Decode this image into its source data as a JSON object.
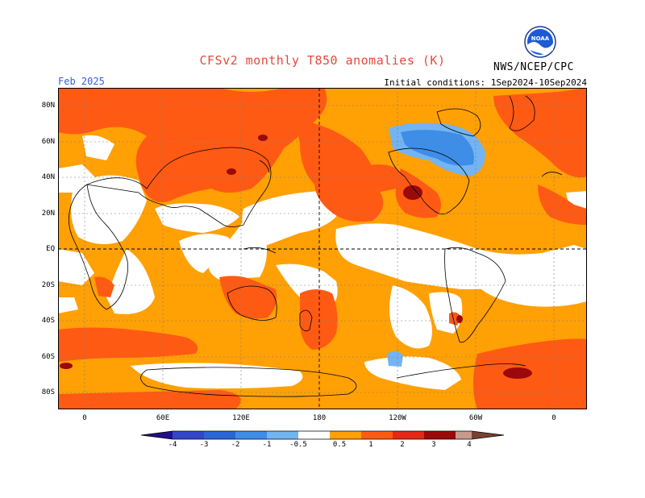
{
  "header": {
    "title": "CFSv2 monthly T850 anomalies (K)",
    "period": "Feb 2025",
    "initial_conditions": "Initial conditions: 1Sep2024-10Sep2024",
    "agency": "NWS/NCEP/CPC",
    "logo_text": "NOAA"
  },
  "map": {
    "lat_labels": [
      "80N",
      "60N",
      "40N",
      "20N",
      "EQ",
      "20S",
      "40S",
      "60S",
      "80S"
    ],
    "lon_labels": [
      "0",
      "60E",
      "120E",
      "180",
      "120W",
      "60W",
      "0"
    ],
    "dashed_reference_lines": [
      "EQ",
      "180"
    ],
    "gridlines": "dotted"
  },
  "colorbar": {
    "labels": [
      "-4",
      "-3",
      "-2",
      "-1",
      "-0.5",
      "0.5",
      "1",
      "2",
      "3",
      "4"
    ],
    "colors": [
      "#1e0f8c",
      "#3346c8",
      "#2966d6",
      "#3e8ee8",
      "#73b4f2",
      "#ffffff",
      "#ffa005",
      "#ff5a14",
      "#e42814",
      "#9b0a0a",
      "#c89a8c",
      "#784232"
    ]
  }
}
